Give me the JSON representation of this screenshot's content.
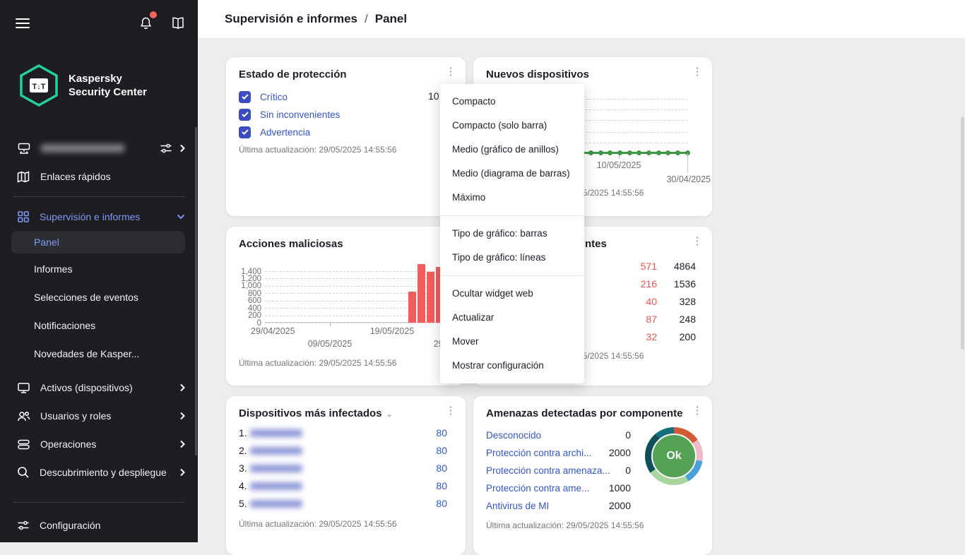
{
  "header": {
    "breadcrumb_section": "Supervisión e informes",
    "breadcrumb_separator": "/",
    "breadcrumb_page": "Panel"
  },
  "sidebar": {
    "brand_line1": "Kaspersky",
    "brand_line2": "Security Center",
    "quick_links": "Enlaces rápidos",
    "active_section": "Supervisión e informes",
    "sub_items": [
      "Panel",
      "Informes",
      "Selecciones de eventos",
      "Notificaciones",
      "Novedades de Kasper..."
    ],
    "selected_sub_item": "Panel",
    "items": [
      "Activos (dispositivos)",
      "Usuarios y roles",
      "Operaciones",
      "Descubrimiento y despliegue"
    ],
    "settings": "Configuración"
  },
  "menu": {
    "groups": [
      [
        "Compacto",
        "Compacto (solo barra)",
        "Medio (gráfico de anillos)",
        "Medio (diagrama de barras)",
        "Máximo"
      ],
      [
        "Tipo de gráfico: barras",
        "Tipo de gráfico: líneas"
      ],
      [
        "Ocultar widget web",
        "Actualizar",
        "Mover",
        "Mostrar configuración"
      ]
    ]
  },
  "widgets": {
    "protection_status": {
      "title": "Estado de protección",
      "checkboxes": [
        "Crítico",
        "Sin inconvenientes",
        "Advertencia"
      ],
      "value_fragment": "10",
      "last_update": "Última actualización: 29/05/2025 14:55:56"
    },
    "new_devices": {
      "title": "Nuevos dispositivos",
      "last_update": "Última actualización: 29/05/2025 14:55:56"
    },
    "malicious_actions": {
      "title": "Acciones maliciosas",
      "last_update": "Última actualización: 29/05/2025 14:55:56"
    },
    "threats_partial": {
      "title_fragment": "ntes",
      "rows": [
        {
          "red": "571",
          "black": "4864"
        },
        {
          "red": "216",
          "black": "1536"
        },
        {
          "red": "40",
          "black": "328"
        },
        {
          "red": "87",
          "black": "248"
        },
        {
          "red": "32",
          "black": "200"
        }
      ],
      "last_update": "Última actualización: 29/05/2025 14:55:56"
    },
    "most_infected": {
      "title": "Dispositivos más infectados",
      "rows": [
        {
          "rank": "1.",
          "value": "80"
        },
        {
          "rank": "2.",
          "value": "80"
        },
        {
          "rank": "3.",
          "value": "80"
        },
        {
          "rank": "4.",
          "value": "80"
        },
        {
          "rank": "5.",
          "value": "80"
        }
      ],
      "last_update": "Última actualización: 29/05/2025 14:55:56"
    },
    "threats_by_component": {
      "title": "Amenazas detectadas por componente",
      "rows": [
        {
          "label": "Desconocido",
          "value": "0"
        },
        {
          "label": "Protección contra archi...",
          "value": "2000"
        },
        {
          "label": "Protección contra amenaza...",
          "value": "0"
        },
        {
          "label": "Protección contra ame...",
          "value": "1000"
        },
        {
          "label": "Antivirus de MI",
          "value": "2000"
        }
      ],
      "donut_center": "Ok",
      "last_update": "Última actualización: 29/05/2025 14:55:56"
    }
  },
  "chart_data": [
    {
      "type": "line",
      "title": "Nuevos dispositivos",
      "series": [
        {
          "name": "nuevos dispositivos",
          "values": [
            0,
            0,
            0,
            0,
            0,
            0,
            0,
            0,
            0,
            0,
            0,
            0,
            0,
            0,
            0,
            0,
            0,
            0,
            0,
            0,
            0
          ]
        }
      ],
      "x_tick_labels": [
        "10/05/2025",
        "30/04/2025"
      ],
      "line_color": "#3F9746",
      "grid": "dashed-horizontal",
      "gridline_count": 5
    },
    {
      "type": "bar",
      "title": "Acciones maliciosas",
      "values": [
        840,
        1600,
        1390,
        1520,
        1500
      ],
      "y_tick_labels": [
        "1,400",
        "1,200",
        "1,000",
        "800",
        "600",
        "400",
        "200",
        "0"
      ],
      "y_max": 1400,
      "x_tick_labels_row1": [
        "29/04/2025",
        "19/05/2025"
      ],
      "x_tick_labels_row2": [
        "09/05/2025",
        "29/05/2025"
      ],
      "bar_color": "#F65C5C",
      "grid": "dashed-horizontal"
    },
    {
      "type": "pie",
      "title": "Amenazas detectadas por componente",
      "center_label": "Ok",
      "center_color": "#55A156",
      "segments": [
        {
          "color": "#CF5B35",
          "deg": 55
        },
        {
          "color": "#EFBAC5",
          "deg": 45
        },
        {
          "color": "#49A1DB",
          "deg": 50
        },
        {
          "color": "#A9D5A0",
          "deg": 85
        },
        {
          "color": "#0E4F59",
          "deg": 85
        },
        {
          "color": "#166F7D",
          "deg": 40
        }
      ]
    }
  ],
  "colors": {
    "link_blue": "#3355C9",
    "sidebar_accent": "#7D98F4",
    "alert_red": "#F0524D",
    "bar_red": "#F65C5C",
    "line_green": "#3F9746",
    "brand_teal": "#23D1A0"
  }
}
